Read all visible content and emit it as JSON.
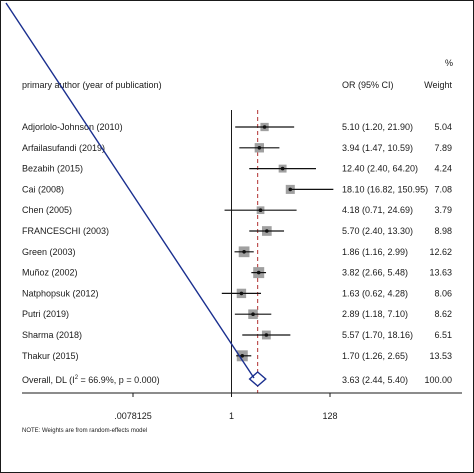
{
  "chart_data": {
    "type": "forest",
    "header": {
      "study_col": "primary author (year of publication)",
      "or_col": "OR (95% CI)",
      "weight_col_top": "%",
      "weight_col": "Weight"
    },
    "x_axis": {
      "scale": "log2",
      "ticks": [
        {
          "value": 0.0078125,
          "label": ".0078125"
        },
        {
          "value": 1,
          "label": "1"
        },
        {
          "value": 128,
          "label": "128"
        }
      ],
      "null_line": 1,
      "pooled_line": 3.63
    },
    "studies": [
      {
        "label": "Adjorlolo-Johnson (2010)",
        "or": 5.1,
        "lo": 1.2,
        "hi": 21.9,
        "ci_text": "5.10 (1.20, 21.90)",
        "weight": "5.04"
      },
      {
        "label": "Arfailasufandi (2019)",
        "or": 3.94,
        "lo": 1.47,
        "hi": 10.59,
        "ci_text": "3.94 (1.47, 10.59)",
        "weight": "7.89"
      },
      {
        "label": "Bezabih (2015)",
        "or": 12.4,
        "lo": 2.4,
        "hi": 64.2,
        "ci_text": "12.40 (2.40, 64.20)",
        "weight": "4.24"
      },
      {
        "label": "Cai (2008)",
        "or": 18.1,
        "lo": 16.82,
        "hi": 150.95,
        "ci_text": "18.10 (16.82, 150.95)",
        "weight": "7.08"
      },
      {
        "label": "Chen (2005)",
        "or": 4.18,
        "lo": 0.71,
        "hi": 24.69,
        "ci_text": "4.18 (0.71, 24.69)",
        "weight": "3.79"
      },
      {
        "label": "FRANCESCHI (2003)",
        "or": 5.7,
        "lo": 2.4,
        "hi": 13.3,
        "ci_text": "5.70 (2.40, 13.30)",
        "weight": "8.98"
      },
      {
        "label": "Green (2003)",
        "or": 1.86,
        "lo": 1.16,
        "hi": 2.99,
        "ci_text": "1.86 (1.16, 2.99)",
        "weight": "12.62"
      },
      {
        "label": "Muñoz (2002)",
        "or": 3.82,
        "lo": 2.66,
        "hi": 5.48,
        "ci_text": "3.82 (2.66, 5.48)",
        "weight": "13.63"
      },
      {
        "label": "Natphopsuk (2012)",
        "or": 1.63,
        "lo": 0.62,
        "hi": 4.28,
        "ci_text": "1.63 (0.62, 4.28)",
        "weight": "8.06"
      },
      {
        "label": "Putri (2019)",
        "or": 2.89,
        "lo": 1.18,
        "hi": 7.1,
        "ci_text": "2.89 (1.18, 7.10)",
        "weight": "8.62"
      },
      {
        "label": "Sharma (2018)",
        "or": 5.57,
        "lo": 1.7,
        "hi": 18.16,
        "ci_text": "5.57 (1.70, 18.16)",
        "weight": "6.51"
      },
      {
        "label": "Thakur (2015)",
        "or": 1.7,
        "lo": 1.26,
        "hi": 2.65,
        "ci_text": "1.70 (1.26, 2.65)",
        "weight": "13.53"
      }
    ],
    "overall": {
      "label_prefix": "Overall, DL (I",
      "label_sup": "2",
      "label_suffix": " = 66.9%, p = 0.000)",
      "or": 3.63,
      "lo": 2.44,
      "hi": 5.4,
      "ci_text": "3.63 (2.44, 5.40)",
      "weight": "100.00"
    },
    "note": "NOTE: Weights are from random-effects model",
    "colors": {
      "ci_line": "#111111",
      "box": "#a0a0a0",
      "pooled_line": "#b03030",
      "diamond": "#1a2f8f",
      "border": "#1a1a1a",
      "diagonal": "#1a2f8f"
    }
  }
}
